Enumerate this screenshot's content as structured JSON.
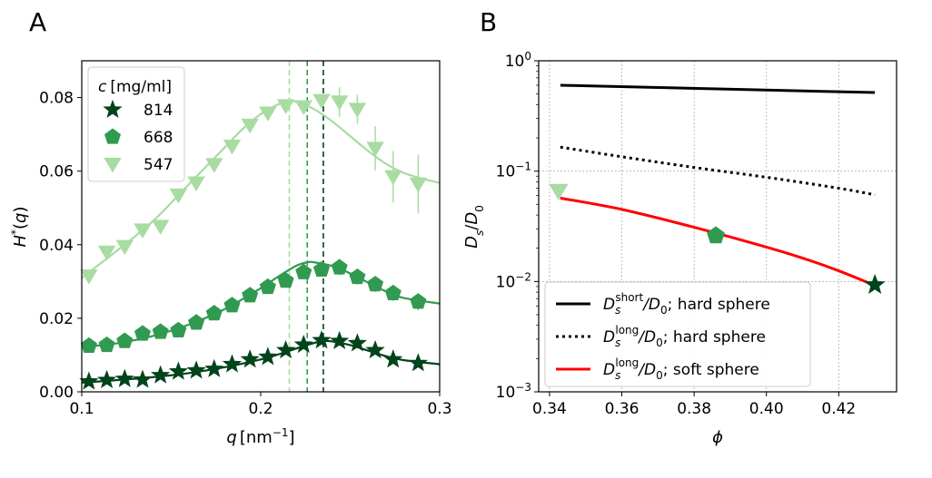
{
  "chart_data": [
    {
      "panel": "A",
      "type": "scatter",
      "xlabel": "q [nm⁻¹]",
      "ylabel": "H*(q)",
      "xlim": [
        0.1,
        0.3
      ],
      "ylim": [
        0.0,
        0.09
      ],
      "xticks": [
        0.1,
        0.2,
        0.3
      ],
      "xtick_labels": [
        "0.1",
        "0.2",
        "0.3"
      ],
      "yticks": [
        0.0,
        0.02,
        0.04,
        0.06,
        0.08
      ],
      "ytick_labels": [
        "0.00",
        "0.02",
        "0.04",
        "0.06",
        "0.08"
      ],
      "legend_title": "c [mg/ml]",
      "legend_position": "top-left",
      "series": [
        {
          "name": "814",
          "marker": "star",
          "color": "#00441b",
          "peak_q": 0.235,
          "x": [
            0.104,
            0.114,
            0.124,
            0.134,
            0.144,
            0.154,
            0.164,
            0.174,
            0.184,
            0.194,
            0.204,
            0.214,
            0.224,
            0.234,
            0.244,
            0.254,
            0.264,
            0.274,
            0.288
          ],
          "y": [
            0.0028,
            0.0032,
            0.0035,
            0.0033,
            0.0045,
            0.0055,
            0.0058,
            0.0062,
            0.0075,
            0.0088,
            0.0095,
            0.0113,
            0.0128,
            0.014,
            0.0138,
            0.0132,
            0.0113,
            0.0088,
            0.0078
          ],
          "fit_x": [
            0.1,
            0.12,
            0.14,
            0.16,
            0.18,
            0.2,
            0.21,
            0.22,
            0.23,
            0.235,
            0.24,
            0.25,
            0.26,
            0.27,
            0.28,
            0.3
          ],
          "fit_y": [
            0.0025,
            0.0032,
            0.004,
            0.0051,
            0.0067,
            0.0088,
            0.0102,
            0.0118,
            0.0133,
            0.0138,
            0.0137,
            0.0127,
            0.0112,
            0.0097,
            0.0086,
            0.0075
          ]
        },
        {
          "name": "668",
          "marker": "pentagon",
          "color": "#319a51",
          "peak_q": 0.226,
          "x": [
            0.104,
            0.114,
            0.124,
            0.134,
            0.144,
            0.154,
            0.164,
            0.174,
            0.184,
            0.194,
            0.204,
            0.214,
            0.224,
            0.234,
            0.244,
            0.254,
            0.264,
            0.274,
            0.288
          ],
          "y": [
            0.0125,
            0.0127,
            0.0138,
            0.0158,
            0.0163,
            0.0167,
            0.0188,
            0.0213,
            0.0235,
            0.0262,
            0.0285,
            0.0302,
            0.0325,
            0.0332,
            0.0338,
            0.0312,
            0.0292,
            0.0268,
            0.0245
          ],
          "err": [
            0,
            0,
            0,
            0,
            0,
            0,
            0,
            0,
            0,
            0,
            0,
            0,
            0,
            0,
            0.002,
            0.002,
            0.002,
            0.002,
            0.0022
          ],
          "fit_x": [
            0.1,
            0.12,
            0.14,
            0.16,
            0.18,
            0.2,
            0.21,
            0.22,
            0.226,
            0.23,
            0.24,
            0.25,
            0.26,
            0.27,
            0.28,
            0.3
          ],
          "fit_y": [
            0.0122,
            0.0132,
            0.0152,
            0.0183,
            0.0225,
            0.0282,
            0.0314,
            0.0343,
            0.0352,
            0.0352,
            0.0342,
            0.0322,
            0.0297,
            0.0273,
            0.0255,
            0.024
          ]
        },
        {
          "name": "547",
          "marker": "triangle-down",
          "color": "#a8dca2",
          "peak_q": 0.216,
          "x": [
            0.104,
            0.114,
            0.124,
            0.134,
            0.144,
            0.154,
            0.164,
            0.174,
            0.184,
            0.194,
            0.204,
            0.214,
            0.224,
            0.234,
            0.244,
            0.254,
            0.264,
            0.274,
            0.288
          ],
          "y": [
            0.0315,
            0.038,
            0.0395,
            0.044,
            0.045,
            0.0535,
            0.0568,
            0.0618,
            0.0668,
            0.0725,
            0.0758,
            0.0778,
            0.0775,
            0.0792,
            0.0788,
            0.0768,
            0.0662,
            0.0585,
            0.0565
          ],
          "err": [
            0,
            0,
            0,
            0,
            0,
            0,
            0,
            0,
            0,
            0,
            0,
            0,
            0,
            0,
            0.004,
            0.004,
            0.006,
            0.007,
            0.008
          ],
          "fit_x": [
            0.1,
            0.12,
            0.14,
            0.16,
            0.18,
            0.19,
            0.2,
            0.21,
            0.216,
            0.22,
            0.23,
            0.24,
            0.25,
            0.26,
            0.27,
            0.28,
            0.29,
            0.3
          ],
          "fit_y": [
            0.031,
            0.0385,
            0.0465,
            0.0565,
            0.0665,
            0.0715,
            0.0755,
            0.0782,
            0.079,
            0.0788,
            0.0768,
            0.0735,
            0.0695,
            0.0655,
            0.062,
            0.0595,
            0.058,
            0.0568
          ]
        }
      ]
    },
    {
      "panel": "B",
      "type": "line",
      "xlabel": "ϕ",
      "ylabel": "Ds/D0",
      "yscale": "log",
      "xlim": [
        0.337,
        0.436
      ],
      "ylim": [
        0.001,
        1.0
      ],
      "xticks": [
        0.34,
        0.36,
        0.38,
        0.4,
        0.42
      ],
      "xtick_labels": [
        "0.34",
        "0.36",
        "0.38",
        "0.40",
        "0.42"
      ],
      "yticks": [
        0.001,
        0.01,
        0.1,
        1.0
      ],
      "ytick_bases": [
        "10",
        "10",
        "10",
        "10"
      ],
      "ytick_exponents": [
        "−3",
        "−2",
        "−1",
        "0"
      ],
      "grid": true,
      "legend_position": "bottom-left",
      "series": [
        {
          "name": "D_s^short/D_0; hard sphere",
          "legend_main": "D",
          "legend_sub": "s",
          "legend_sup": "short",
          "legend_rest": "/D",
          "legend_sub2": "0",
          "legend_tail": "; hard sphere",
          "style": "solid",
          "color": "#000000",
          "x": [
            0.343,
            0.43
          ],
          "y": [
            0.6,
            0.515
          ]
        },
        {
          "name": "D_s^long/D_0; hard sphere",
          "legend_main": "D",
          "legend_sub": "s",
          "legend_sup": "long",
          "legend_rest": "/D",
          "legend_sub2": "0",
          "legend_tail": "; hard sphere",
          "style": "dotted",
          "color": "#000000",
          "x": [
            0.343,
            0.36,
            0.38,
            0.4,
            0.42,
            0.43
          ],
          "y": [
            0.165,
            0.135,
            0.108,
            0.088,
            0.07,
            0.061
          ]
        },
        {
          "name": "D_s^long/D_0; soft sphere",
          "legend_main": "D",
          "legend_sub": "s",
          "legend_sup": "long",
          "legend_rest": "/D",
          "legend_sub2": "0",
          "legend_tail": "; soft sphere",
          "style": "solid",
          "color": "#ff0000",
          "x": [
            0.343,
            0.36,
            0.38,
            0.4,
            0.41,
            0.42,
            0.43
          ],
          "y": [
            0.057,
            0.045,
            0.031,
            0.0205,
            0.0163,
            0.0125,
            0.0092
          ]
        }
      ],
      "points": [
        {
          "name": "547",
          "marker": "triangle-down",
          "color": "#a8dca2",
          "x": 0.3425,
          "y": 0.066
        },
        {
          "name": "668",
          "marker": "pentagon",
          "color": "#319a51",
          "x": 0.386,
          "y": 0.026
        },
        {
          "name": "814",
          "marker": "star",
          "color": "#00441b",
          "x": 0.43,
          "y": 0.0093
        }
      ]
    }
  ]
}
